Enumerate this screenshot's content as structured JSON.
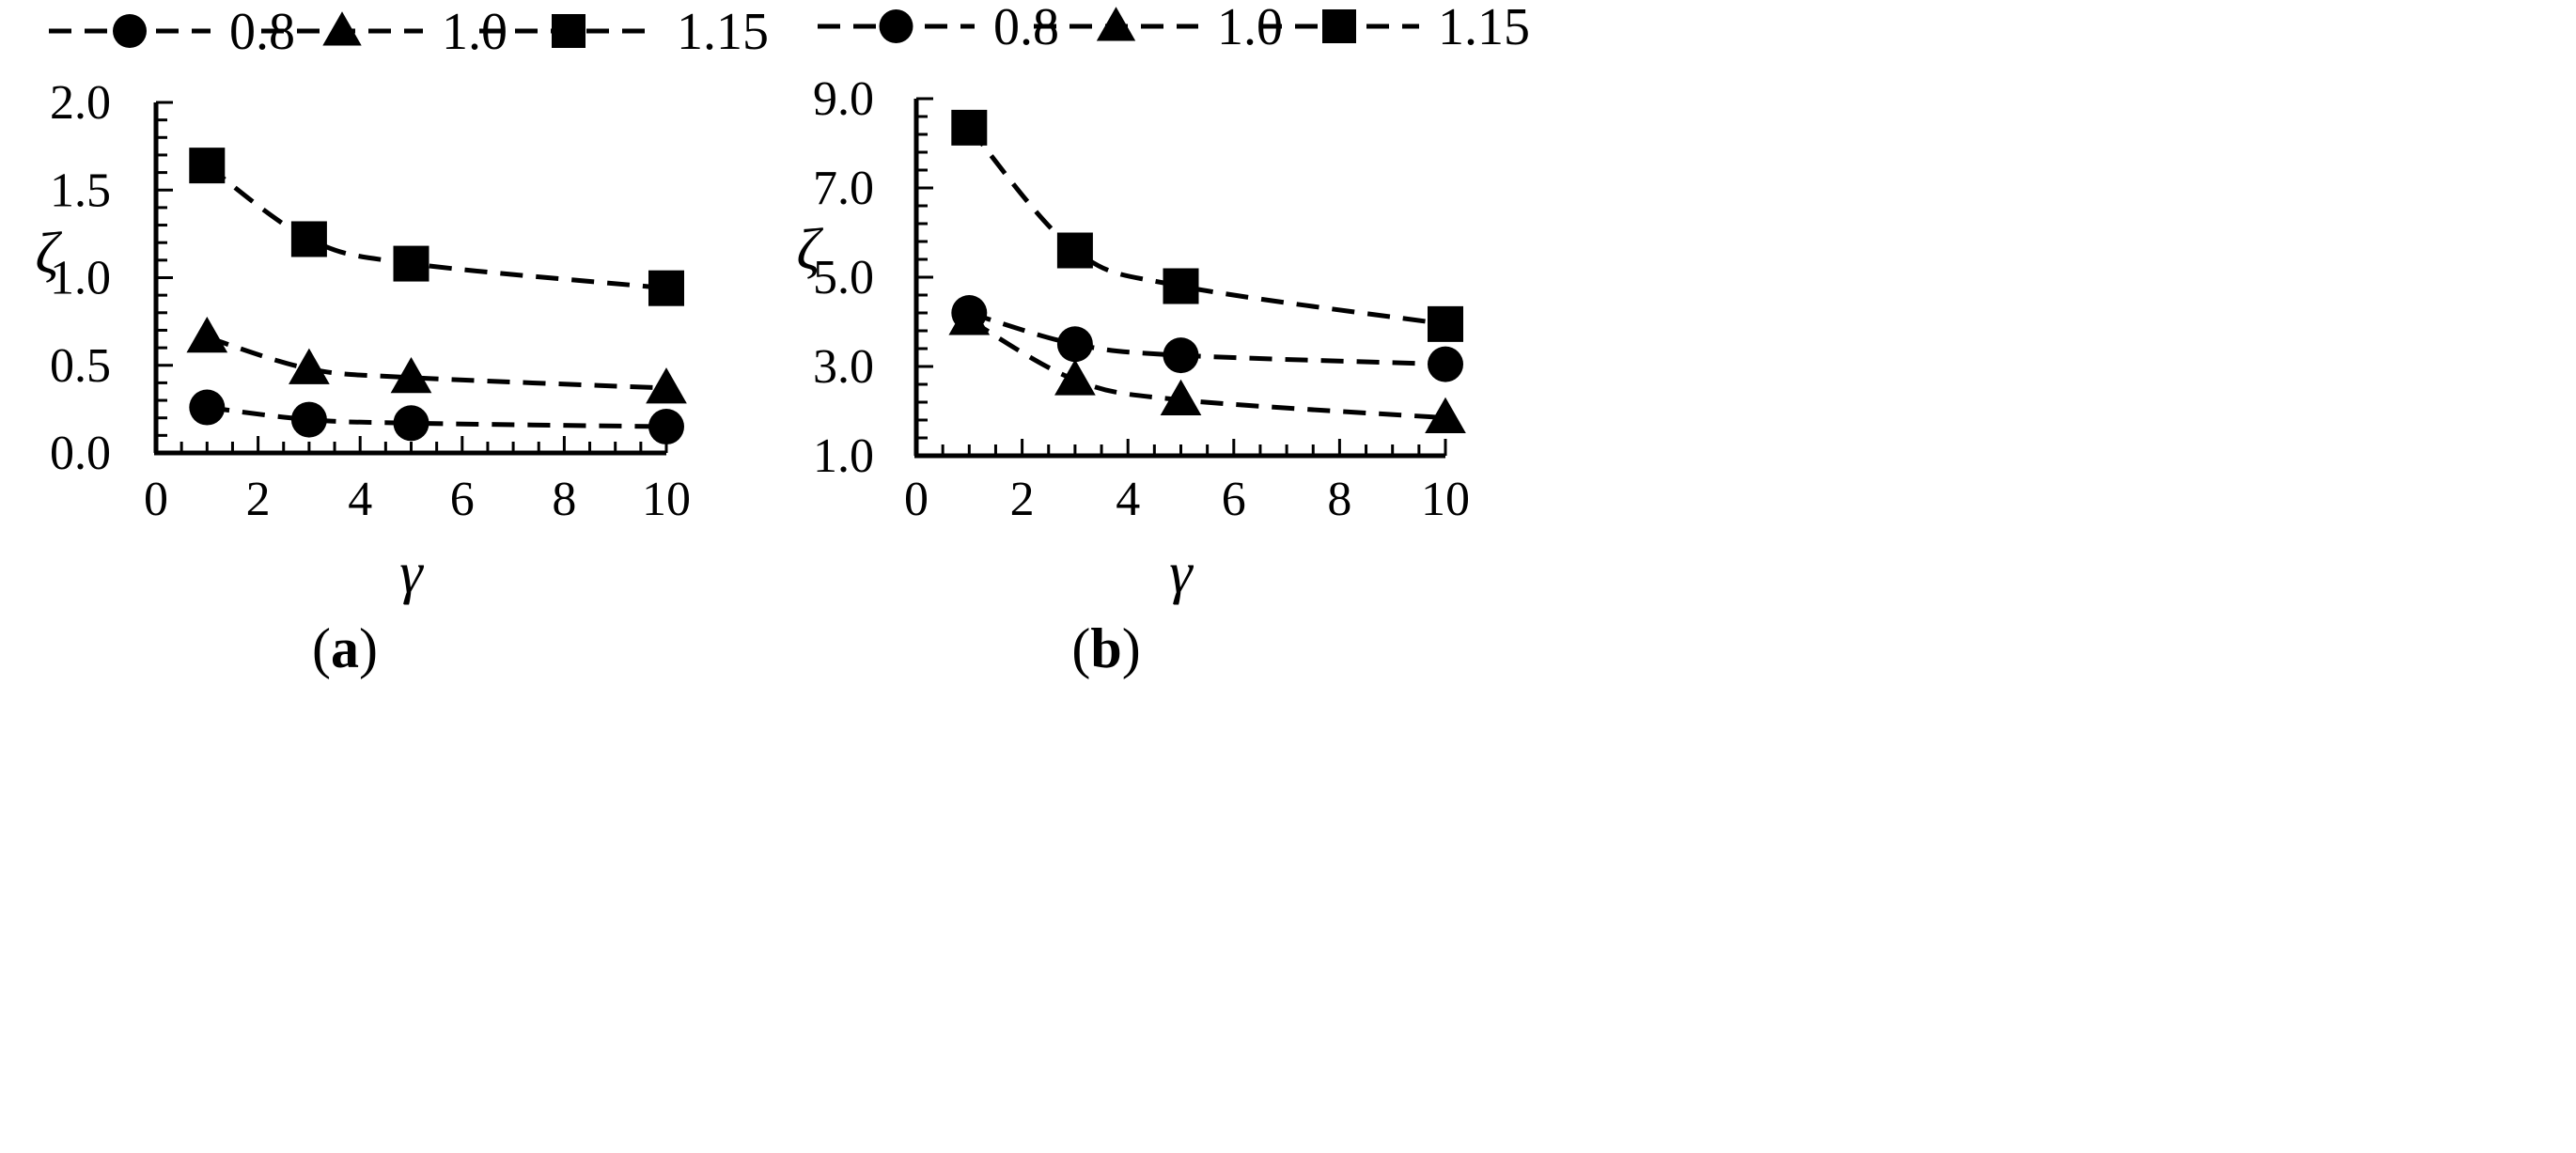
{
  "chart_data": [
    {
      "type": "line",
      "panel_label": "(a)",
      "panel_letter": "a",
      "xlabel": "γ",
      "ylabel": "ζ",
      "xlim": [
        0,
        10
      ],
      "ylim": [
        0.0,
        2.0
      ],
      "x_ticks": [
        "0",
        "2",
        "4",
        "6",
        "8",
        "10"
      ],
      "y_ticks": [
        "0.0",
        "0.5",
        "1.0",
        "1.5",
        "2.0"
      ],
      "line_style": "dashed",
      "legend_position": "top",
      "series": [
        {
          "name": "0.8",
          "marker": "circle",
          "x": [
            1,
            3,
            5,
            10
          ],
          "y": [
            0.26,
            0.19,
            0.17,
            0.15
          ]
        },
        {
          "name": "1.0",
          "marker": "triangle",
          "x": [
            1,
            3,
            5,
            10
          ],
          "y": [
            0.66,
            0.48,
            0.43,
            0.37
          ]
        },
        {
          "name": "1.15",
          "marker": "square",
          "x": [
            1,
            3,
            5,
            10
          ],
          "y": [
            1.64,
            1.22,
            1.08,
            0.94
          ]
        }
      ]
    },
    {
      "type": "line",
      "panel_label": "(b)",
      "panel_letter": "b",
      "xlabel": "γ",
      "ylabel": "ζ",
      "xlim": [
        0,
        10
      ],
      "ylim": [
        1.0,
        9.0
      ],
      "x_ticks": [
        "0",
        "2",
        "4",
        "6",
        "8",
        "10"
      ],
      "y_ticks": [
        "1.0",
        "3.0",
        "5.0",
        "7.0",
        "9.0"
      ],
      "line_style": "dashed",
      "legend_position": "top",
      "series": [
        {
          "name": "0.8",
          "marker": "circle",
          "x": [
            1,
            3,
            5,
            10
          ],
          "y": [
            4.2,
            3.5,
            3.25,
            3.05
          ]
        },
        {
          "name": "1.0",
          "marker": "triangle",
          "x": [
            1,
            3,
            5,
            10
          ],
          "y": [
            4.05,
            2.7,
            2.25,
            1.85
          ]
        },
        {
          "name": "1.15",
          "marker": "square",
          "x": [
            1,
            3,
            5,
            10
          ],
          "y": [
            8.35,
            5.6,
            4.8,
            3.95
          ]
        }
      ]
    }
  ]
}
